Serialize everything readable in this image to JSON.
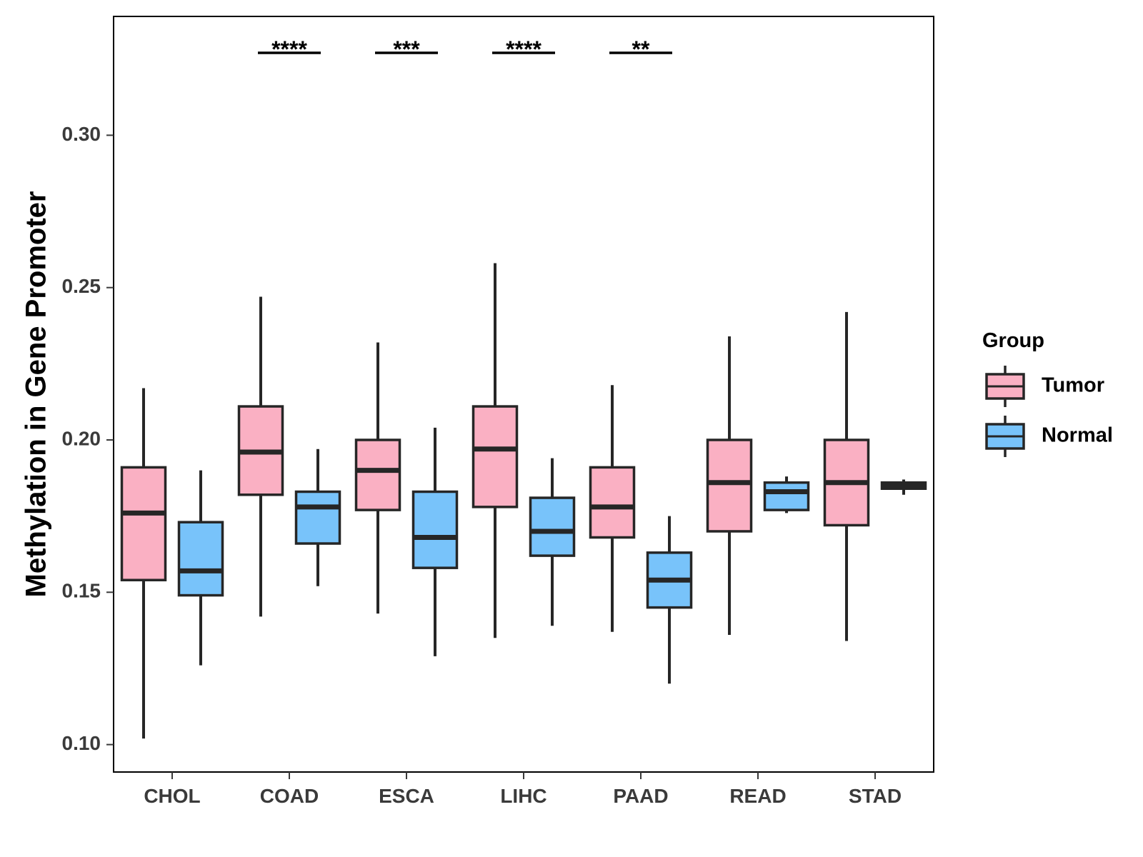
{
  "chart_data": {
    "type": "boxplot",
    "title": "",
    "xlabel": "",
    "ylabel": "Methylation in Gene Promoter",
    "ylim": [
      0.091,
      0.339
    ],
    "y_ticks": [
      0.1,
      0.15,
      0.2,
      0.25,
      0.3
    ],
    "y_tick_labels": [
      "0.10",
      "0.15",
      "0.20",
      "0.25",
      "0.30"
    ],
    "categories": [
      "CHOL",
      "COAD",
      "ESCA",
      "LIHC",
      "PAAD",
      "READ",
      "STAD"
    ],
    "legend": {
      "title": "Group",
      "position": "right",
      "entries": [
        {
          "name": "Tumor",
          "color": "#FAB0C3"
        },
        {
          "name": "Normal",
          "color": "#78C3FA"
        }
      ]
    },
    "series": [
      {
        "name": "Tumor",
        "color": "#FAB0C3",
        "boxes": [
          {
            "category": "CHOL",
            "min": 0.102,
            "q1": 0.154,
            "median": 0.176,
            "q3": 0.191,
            "max": 0.217
          },
          {
            "category": "COAD",
            "min": 0.142,
            "q1": 0.182,
            "median": 0.196,
            "q3": 0.211,
            "max": 0.247
          },
          {
            "category": "ESCA",
            "min": 0.143,
            "q1": 0.177,
            "median": 0.19,
            "q3": 0.2,
            "max": 0.232
          },
          {
            "category": "LIHC",
            "min": 0.135,
            "q1": 0.178,
            "median": 0.197,
            "q3": 0.211,
            "max": 0.258
          },
          {
            "category": "PAAD",
            "min": 0.137,
            "q1": 0.168,
            "median": 0.178,
            "q3": 0.191,
            "max": 0.218
          },
          {
            "category": "READ",
            "min": 0.136,
            "q1": 0.17,
            "median": 0.186,
            "q3": 0.2,
            "max": 0.234
          },
          {
            "category": "STAD",
            "min": 0.134,
            "q1": 0.172,
            "median": 0.186,
            "q3": 0.2,
            "max": 0.242
          }
        ]
      },
      {
        "name": "Normal",
        "color": "#78C3FA",
        "boxes": [
          {
            "category": "CHOL",
            "min": 0.126,
            "q1": 0.149,
            "median": 0.157,
            "q3": 0.173,
            "max": 0.19
          },
          {
            "category": "COAD",
            "min": 0.152,
            "q1": 0.166,
            "median": 0.178,
            "q3": 0.183,
            "max": 0.197
          },
          {
            "category": "ESCA",
            "min": 0.129,
            "q1": 0.158,
            "median": 0.168,
            "q3": 0.183,
            "max": 0.204
          },
          {
            "category": "LIHC",
            "min": 0.139,
            "q1": 0.162,
            "median": 0.17,
            "q3": 0.181,
            "max": 0.194
          },
          {
            "category": "PAAD",
            "min": 0.12,
            "q1": 0.145,
            "median": 0.154,
            "q3": 0.163,
            "max": 0.175
          },
          {
            "category": "READ",
            "min": 0.176,
            "q1": 0.177,
            "median": 0.183,
            "q3": 0.186,
            "max": 0.188
          },
          {
            "category": "STAD",
            "min": 0.182,
            "q1": 0.184,
            "median": 0.185,
            "q3": 0.186,
            "max": 0.187
          }
        ]
      }
    ],
    "significance": [
      {
        "category": "COAD",
        "label": "****"
      },
      {
        "category": "ESCA",
        "label": "***"
      },
      {
        "category": "LIHC",
        "label": "****"
      },
      {
        "category": "PAAD",
        "label": "**"
      }
    ]
  },
  "colors": {
    "line": "#262626",
    "axis_text": "#3a3a3a",
    "panel_border": "#000000"
  }
}
